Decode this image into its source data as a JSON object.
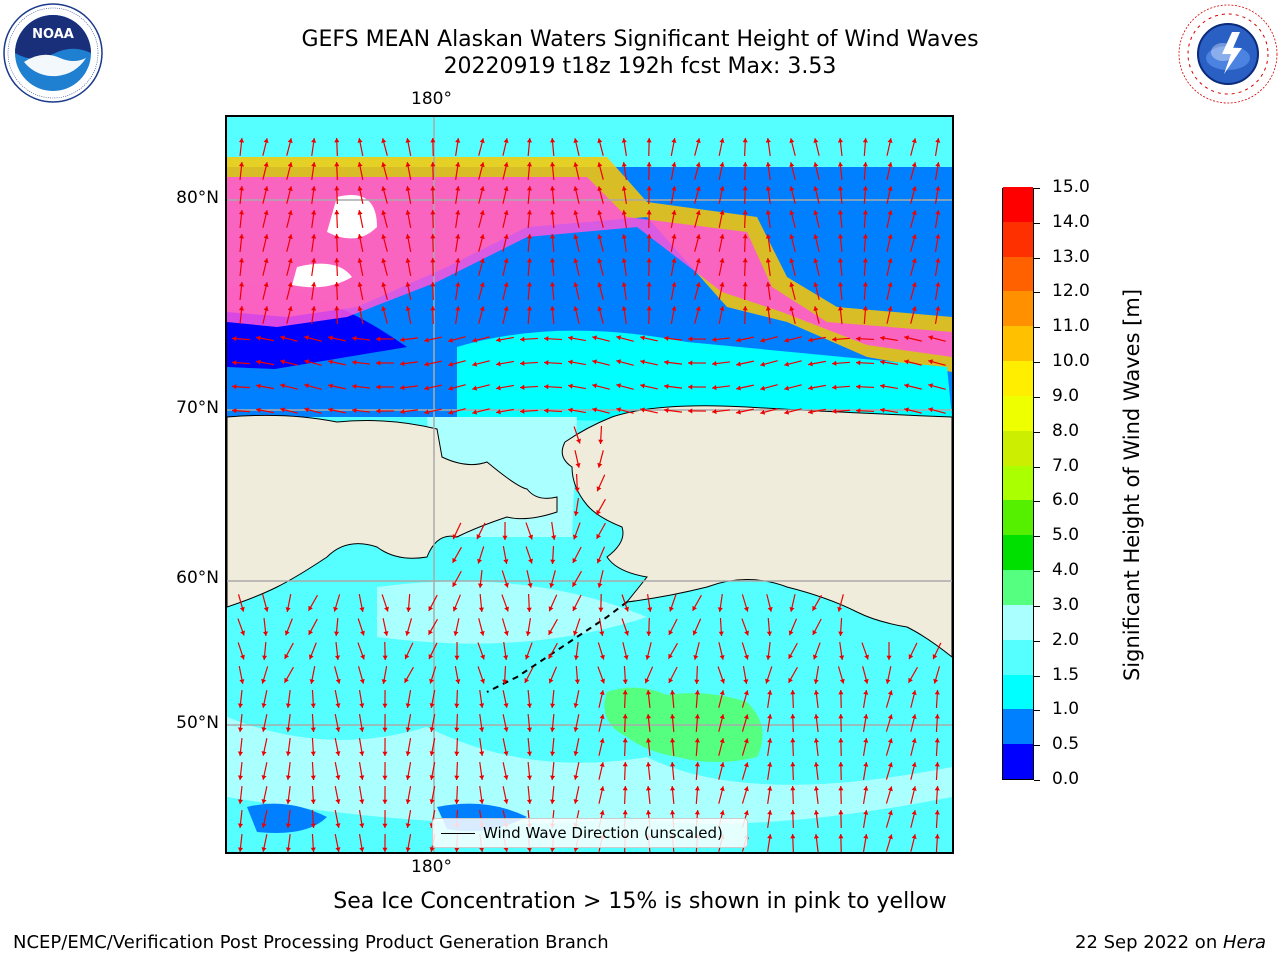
{
  "title": {
    "line1": "GEFS MEAN Alaskan Waters Significant Height of Wind Waves",
    "line2": "20220919 t18z 192h fcst   Max: 3.53"
  },
  "logos": {
    "left": {
      "name": "NOAA",
      "ring_text": "NATIONAL OCEANIC AND ATMOSPHERIC ADMINISTRATION · U.S. DEPARTMENT OF COMMERCE"
    },
    "right": {
      "name": "National Weather Service",
      "ring_text": "NATIONAL WEATHER SERVICE"
    }
  },
  "map": {
    "lon_labels": {
      "top": "180°",
      "bottom": "180°"
    },
    "lat_labels": [
      "80°N",
      "70°N",
      "60°N",
      "50°N"
    ],
    "legend": {
      "label": "Wind Wave Direction (unscaled)",
      "line_color": "#000000"
    },
    "arrow_color": "#ee0000",
    "land_color": "#efecdc",
    "gridlines": true
  },
  "colorbar": {
    "label": "Significant Height of Wind Waves [m]",
    "ticks": [
      "0.0",
      "0.5",
      "1.0",
      "1.5",
      "2.0",
      "3.0",
      "4.0",
      "5.0",
      "6.0",
      "7.0",
      "8.0",
      "9.0",
      "10.0",
      "11.0",
      "12.0",
      "13.0",
      "14.0",
      "15.0"
    ],
    "colors": [
      "#0000ff",
      "#0080ff",
      "#00ffff",
      "#55ffff",
      "#aaffff",
      "#55ff80",
      "#00e000",
      "#55f000",
      "#aaff00",
      "#ccee00",
      "#eeff00",
      "#ffee00",
      "#ffc000",
      "#ff9000",
      "#ff6000",
      "#ff3000",
      "#ff0000"
    ]
  },
  "ice_note": "Sea Ice Concentration > 15% is shown in pink to yellow",
  "footer": {
    "left": "NCEP/EMC/Verification Post Processing Product Generation Branch",
    "right_date": "22 Sep 2022 on ",
    "right_machine": "Hera"
  }
}
